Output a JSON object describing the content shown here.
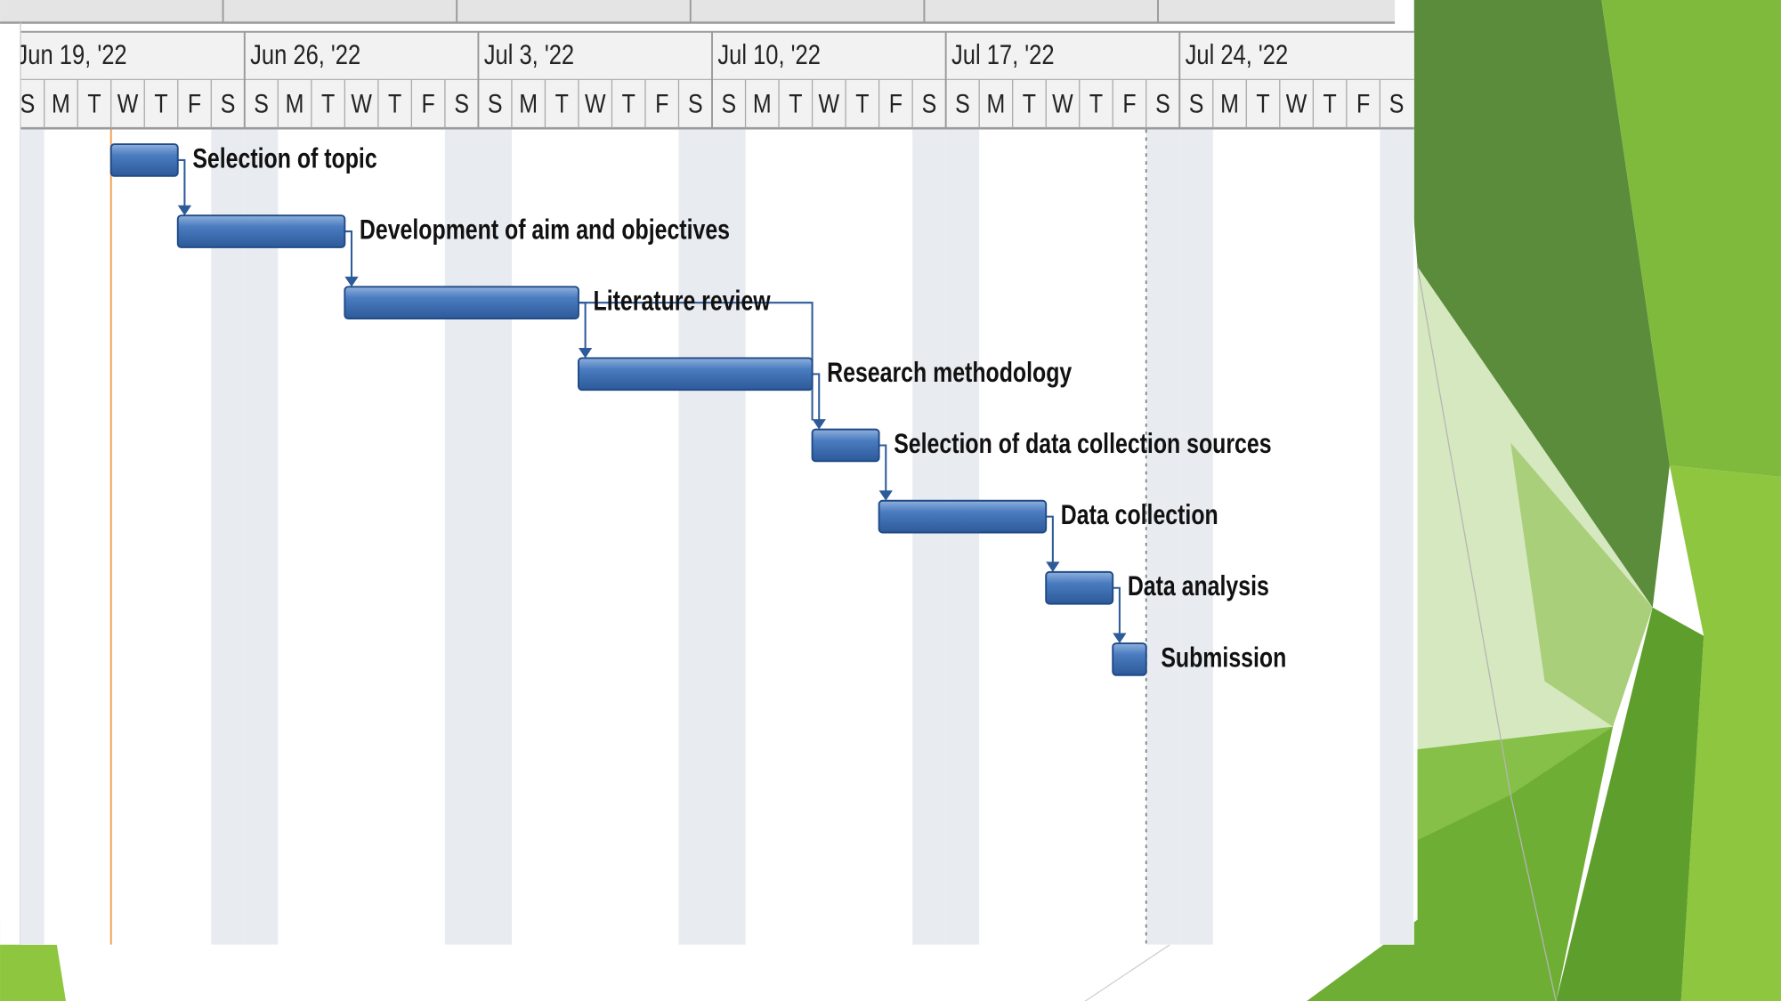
{
  "chart_data": {
    "type": "gantt",
    "xlim": [
      "2022-06-19",
      "2022-07-31"
    ],
    "xticks": [
      {
        "value": "2022-06-19",
        "label": "Jun 19, '22"
      },
      {
        "value": "2022-06-26",
        "label": "Jun 26, '22"
      },
      {
        "value": "2022-07-03",
        "label": "Jul 3, '22"
      },
      {
        "value": "2022-07-10",
        "label": "Jul 10, '22"
      },
      {
        "value": "2022-07-17",
        "label": "Jul 17, '22"
      },
      {
        "value": "2022-07-24",
        "label": "Jul 24, '22"
      }
    ],
    "weekday_labels": [
      "S",
      "M",
      "T",
      "W",
      "T",
      "F",
      "S"
    ],
    "color": "#4a7cc0",
    "tasks": [
      {
        "name": "Selection of topic",
        "start": "2022-06-22",
        "end": "2022-06-23"
      },
      {
        "name": "Development of aim and objectives",
        "start": "2022-06-24",
        "end": "2022-06-28"
      },
      {
        "name": "Literature review",
        "start": "2022-06-29",
        "end": "2022-07-05"
      },
      {
        "name": "Research methodology",
        "start": "2022-07-06",
        "end": "2022-07-12"
      },
      {
        "name": "Selection of data collection sources",
        "start": "2022-07-13",
        "end": "2022-07-14"
      },
      {
        "name": "Data collection",
        "start": "2022-07-15",
        "end": "2022-07-19"
      },
      {
        "name": "Data analysis",
        "start": "2022-07-20",
        "end": "2022-07-21"
      },
      {
        "name": "Submission",
        "start": "2022-07-22",
        "end": "2022-07-22"
      }
    ]
  }
}
